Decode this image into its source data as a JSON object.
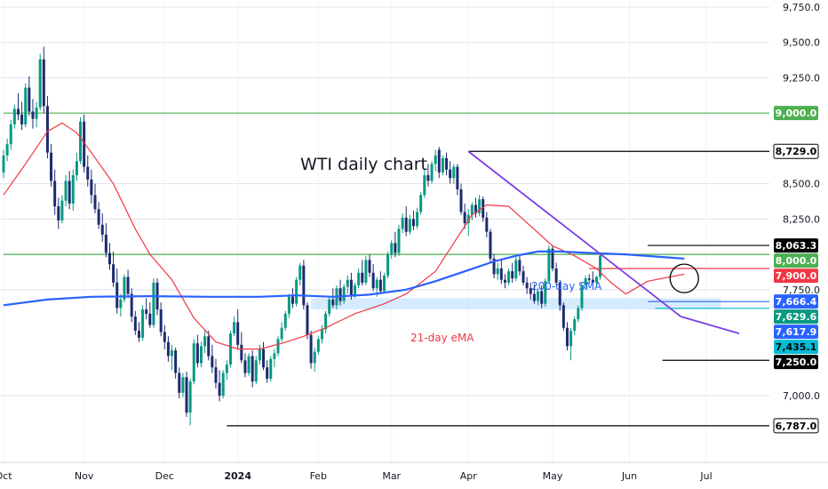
{
  "chart_data": {
    "type": "candlestick",
    "title": "WTI daily chart",
    "colors": {
      "up": "#089981",
      "down": "#1e2a6e",
      "sma200": "#2962ff",
      "ema21": "#f23645",
      "support_green": "#4caf50",
      "trendline": "#7b3fe4",
      "zone": "#bbdefb",
      "grid": "#e0e3eb"
    },
    "y_axis": {
      "ticks": [
        "9,750.0",
        "9,500.0",
        "9,250.0",
        "8,500.0",
        "8,250.0",
        "7,750.0",
        "7,000.0"
      ],
      "tick_values": [
        9750,
        9500,
        9250,
        8500,
        8250,
        7750,
        7000
      ],
      "ylim": [
        6570,
        9830
      ]
    },
    "x_axis": {
      "ticks": [
        "Oct",
        "Nov",
        "Dec",
        "2024",
        "Feb",
        "Mar",
        "Apr",
        "May",
        "Jun",
        "Jul"
      ],
      "tick_index": [
        0,
        22,
        44,
        64,
        86,
        106,
        127,
        150,
        171,
        192
      ]
    },
    "price_levels": [
      {
        "label": "9,000.0",
        "value": 9000,
        "bg": "#4caf50",
        "fg": "#ffffff"
      },
      {
        "label": "8,729.0",
        "value": 8729,
        "bg": "#ffffff",
        "fg": "#000000"
      },
      {
        "label": "8,063.3",
        "value": 8063,
        "bg": "#000000",
        "fg": "#ffffff"
      },
      {
        "label": "8,000.0",
        "value": 8000,
        "bg": "#4caf50",
        "fg": "#ffffff"
      },
      {
        "label": "7,900.0",
        "value": 7900,
        "bg": "#f23645",
        "fg": "#ffffff"
      },
      {
        "label": "7,666.4",
        "value": 7666,
        "bg": "#2962ff",
        "fg": "#ffffff"
      },
      {
        "label": "7,629.6",
        "value": 7630,
        "bg": "#089981",
        "fg": "#ffffff"
      },
      {
        "label": "7,617.9",
        "value": 7618,
        "bg": "#2962ff",
        "fg": "#ffffff"
      },
      {
        "label": "7,435.1",
        "value": 7435,
        "bg": "#00bcd4",
        "fg": "#000000"
      },
      {
        "label": "7,250.0",
        "value": 7250,
        "bg": "#000000",
        "fg": "#ffffff"
      },
      {
        "label": "6,787.0",
        "value": 6787,
        "bg": "#ffffff",
        "fg": "#000000"
      }
    ],
    "annotations": [
      {
        "text": "200-day SMA",
        "color": "#2962ff"
      },
      {
        "text": "21-day eMA",
        "color": "#f23645"
      }
    ],
    "candles": [
      [
        8580,
        8740,
        8540,
        8700
      ],
      [
        8700,
        8820,
        8660,
        8780
      ],
      [
        8780,
        8950,
        8740,
        8920
      ],
      [
        8920,
        9060,
        8890,
        9030
      ],
      [
        9030,
        9140,
        8950,
        8990
      ],
      [
        8990,
        9080,
        8880,
        8920
      ],
      [
        8920,
        9210,
        8900,
        9180
      ],
      [
        9180,
        9260,
        8980,
        9010
      ],
      [
        9010,
        9100,
        8890,
        8960
      ],
      [
        8960,
        9080,
        8900,
        9040
      ],
      [
        9040,
        9420,
        9020,
        9380
      ],
      [
        9380,
        9470,
        9000,
        9050
      ],
      [
        9050,
        9120,
        8680,
        8720
      ],
      [
        8720,
        8780,
        8480,
        8520
      ],
      [
        8520,
        8600,
        8280,
        8340
      ],
      [
        8340,
        8400,
        8180,
        8240
      ],
      [
        8240,
        8420,
        8220,
        8380
      ],
      [
        8380,
        8560,
        8340,
        8520
      ],
      [
        8520,
        8590,
        8320,
        8360
      ],
      [
        8360,
        8600,
        8310,
        8560
      ],
      [
        8560,
        8720,
        8520,
        8660
      ],
      [
        8660,
        8970,
        8640,
        8940
      ],
      [
        8940,
        8990,
        8580,
        8620
      ],
      [
        8620,
        8700,
        8480,
        8530
      ],
      [
        8530,
        8600,
        8360,
        8420
      ],
      [
        8420,
        8500,
        8290,
        8320
      ],
      [
        8320,
        8370,
        8180,
        8210
      ],
      [
        8210,
        8290,
        8090,
        8140
      ],
      [
        8140,
        8220,
        7980,
        8010
      ],
      [
        8010,
        8080,
        7890,
        7930
      ],
      [
        7930,
        8020,
        7770,
        7800
      ],
      [
        7800,
        7900,
        7580,
        7620
      ],
      [
        7620,
        7720,
        7560,
        7680
      ],
      [
        7680,
        7860,
        7660,
        7840
      ],
      [
        7840,
        7890,
        7690,
        7720
      ],
      [
        7720,
        7760,
        7520,
        7560
      ],
      [
        7560,
        7600,
        7430,
        7460
      ],
      [
        7460,
        7520,
        7380,
        7410
      ],
      [
        7410,
        7640,
        7390,
        7610
      ],
      [
        7610,
        7690,
        7540,
        7580
      ],
      [
        7580,
        7660,
        7480,
        7500
      ],
      [
        7500,
        7830,
        7480,
        7800
      ],
      [
        7800,
        7830,
        7570,
        7610
      ],
      [
        7610,
        7660,
        7420,
        7450
      ],
      [
        7450,
        7500,
        7330,
        7380
      ],
      [
        7380,
        7420,
        7240,
        7280
      ],
      [
        7280,
        7360,
        7180,
        7320
      ],
      [
        7320,
        7340,
        7120,
        7160
      ],
      [
        7160,
        7200,
        6980,
        7020
      ],
      [
        7020,
        7160,
        6990,
        7130
      ],
      [
        7130,
        7170,
        6850,
        6880
      ],
      [
        6880,
        7120,
        6790,
        7100
      ],
      [
        7100,
        7400,
        7080,
        7370
      ],
      [
        7370,
        7430,
        7200,
        7230
      ],
      [
        7230,
        7380,
        7200,
        7350
      ],
      [
        7350,
        7460,
        7300,
        7420
      ],
      [
        7420,
        7460,
        7250,
        7280
      ],
      [
        7280,
        7360,
        7160,
        7200
      ],
      [
        7200,
        7260,
        7050,
        7090
      ],
      [
        7090,
        7180,
        6960,
        7000
      ],
      [
        7000,
        7180,
        6980,
        7160
      ],
      [
        7160,
        7250,
        7110,
        7220
      ],
      [
        7220,
        7460,
        7200,
        7440
      ],
      [
        7440,
        7560,
        7420,
        7520
      ],
      [
        7520,
        7610,
        7330,
        7360
      ],
      [
        7360,
        7450,
        7230,
        7250
      ],
      [
        7250,
        7300,
        7130,
        7160
      ],
      [
        7160,
        7300,
        7140,
        7280
      ],
      [
        7280,
        7320,
        7060,
        7100
      ],
      [
        7100,
        7280,
        7080,
        7250
      ],
      [
        7250,
        7360,
        7220,
        7330
      ],
      [
        7330,
        7380,
        7180,
        7200
      ],
      [
        7200,
        7250,
        7090,
        7120
      ],
      [
        7120,
        7280,
        7100,
        7260
      ],
      [
        7260,
        7330,
        7200,
        7300
      ],
      [
        7300,
        7420,
        7280,
        7400
      ],
      [
        7400,
        7520,
        7380,
        7480
      ],
      [
        7480,
        7600,
        7460,
        7580
      ],
      [
        7580,
        7720,
        7550,
        7700
      ],
      [
        7700,
        7760,
        7620,
        7650
      ],
      [
        7650,
        7840,
        7630,
        7820
      ],
      [
        7820,
        7940,
        7780,
        7920
      ],
      [
        7920,
        7960,
        7610,
        7640
      ],
      [
        7640,
        7660,
        7400,
        7430
      ],
      [
        7430,
        7460,
        7190,
        7230
      ],
      [
        7230,
        7340,
        7170,
        7310
      ],
      [
        7310,
        7420,
        7290,
        7400
      ],
      [
        7400,
        7500,
        7370,
        7470
      ],
      [
        7470,
        7600,
        7440,
        7580
      ],
      [
        7580,
        7700,
        7560,
        7680
      ],
      [
        7680,
        7760,
        7620,
        7640
      ],
      [
        7640,
        7780,
        7610,
        7760
      ],
      [
        7760,
        7820,
        7640,
        7670
      ],
      [
        7670,
        7790,
        7650,
        7770
      ],
      [
        7770,
        7850,
        7720,
        7820
      ],
      [
        7820,
        7870,
        7680,
        7710
      ],
      [
        7710,
        7800,
        7690,
        7780
      ],
      [
        7780,
        7900,
        7760,
        7870
      ],
      [
        7870,
        7960,
        7780,
        7800
      ],
      [
        7800,
        7990,
        7780,
        7960
      ],
      [
        7960,
        8000,
        7840,
        7870
      ],
      [
        7870,
        7930,
        7740,
        7760
      ],
      [
        7760,
        7840,
        7700,
        7820
      ],
      [
        7820,
        7880,
        7720,
        7740
      ],
      [
        7740,
        7870,
        7730,
        7850
      ],
      [
        7850,
        8020,
        7830,
        8000
      ],
      [
        8000,
        8100,
        7970,
        8080
      ],
      [
        8080,
        8160,
        7980,
        8010
      ],
      [
        8010,
        8210,
        7990,
        8180
      ],
      [
        8180,
        8290,
        8150,
        8260
      ],
      [
        8260,
        8340,
        8130,
        8160
      ],
      [
        8160,
        8280,
        8140,
        8250
      ],
      [
        8250,
        8310,
        8170,
        8200
      ],
      [
        8200,
        8330,
        8180,
        8300
      ],
      [
        8300,
        8440,
        8280,
        8420
      ],
      [
        8420,
        8600,
        8400,
        8560
      ],
      [
        8560,
        8640,
        8480,
        8520
      ],
      [
        8520,
        8660,
        8500,
        8640
      ],
      [
        8640,
        8740,
        8590,
        8700
      ],
      [
        8740,
        8760,
        8540,
        8580
      ],
      [
        8580,
        8700,
        8560,
        8680
      ],
      [
        8680,
        8720,
        8560,
        8600
      ],
      [
        8600,
        8660,
        8500,
        8540
      ],
      [
        8540,
        8640,
        8500,
        8620
      ],
      [
        8620,
        8640,
        8420,
        8460
      ],
      [
        8460,
        8500,
        8280,
        8300
      ],
      [
        8300,
        8360,
        8180,
        8220
      ],
      [
        8220,
        8320,
        8130,
        8280
      ],
      [
        8280,
        8370,
        8240,
        8350
      ],
      [
        8350,
        8400,
        8260,
        8290
      ],
      [
        8290,
        8420,
        8270,
        8390
      ],
      [
        8390,
        8410,
        8230,
        8260
      ],
      [
        8260,
        8300,
        8120,
        8160
      ],
      [
        8160,
        8180,
        7940,
        7970
      ],
      [
        7970,
        8000,
        7830,
        7860
      ],
      [
        7860,
        7940,
        7820,
        7900
      ],
      [
        7900,
        7960,
        7790,
        7820
      ],
      [
        7820,
        7860,
        7760,
        7800
      ],
      [
        7800,
        7900,
        7780,
        7880
      ],
      [
        7880,
        7940,
        7800,
        7830
      ],
      [
        7830,
        7990,
        7810,
        7960
      ],
      [
        7960,
        8000,
        7850,
        7880
      ],
      [
        7880,
        7920,
        7780,
        7800
      ],
      [
        7800,
        7840,
        7720,
        7760
      ],
      [
        7760,
        7800,
        7680,
        7720
      ],
      [
        7720,
        7790,
        7650,
        7670
      ],
      [
        7670,
        7760,
        7640,
        7740
      ],
      [
        7740,
        7780,
        7620,
        7650
      ],
      [
        7650,
        7830,
        7630,
        7810
      ],
      [
        7810,
        8063,
        7790,
        8040
      ],
      [
        8040,
        8060,
        7880,
        7900
      ],
      [
        7900,
        7940,
        7780,
        7800
      ],
      [
        7800,
        7820,
        7600,
        7640
      ],
      [
        7640,
        7660,
        7460,
        7480
      ],
      [
        7480,
        7520,
        7320,
        7350
      ],
      [
        7350,
        7480,
        7250,
        7460
      ],
      [
        7460,
        7560,
        7430,
        7540
      ],
      [
        7540,
        7640,
        7520,
        7620
      ],
      [
        7620,
        7800,
        7600,
        7780
      ],
      [
        7780,
        7850,
        7750,
        7830
      ],
      [
        7830,
        7860,
        7790,
        7820
      ],
      [
        7820,
        7880,
        7780,
        7800
      ],
      [
        7800,
        7850,
        7770,
        7840
      ],
      [
        7840,
        8010,
        7820,
        7990
      ]
    ],
    "sma200": [
      [
        0,
        7640
      ],
      [
        12,
        7680
      ],
      [
        24,
        7700
      ],
      [
        40,
        7704
      ],
      [
        56,
        7700
      ],
      [
        70,
        7700
      ],
      [
        80,
        7710
      ],
      [
        90,
        7700
      ],
      [
        100,
        7715
      ],
      [
        110,
        7750
      ],
      [
        118,
        7810
      ],
      [
        126,
        7880
      ],
      [
        134,
        7950
      ],
      [
        140,
        7990
      ],
      [
        146,
        8020
      ],
      [
        152,
        8020
      ],
      [
        160,
        8010
      ],
      [
        170,
        8000
      ],
      [
        186,
        7970
      ]
    ],
    "ema21": [
      [
        0,
        8420
      ],
      [
        6,
        8640
      ],
      [
        12,
        8870
      ],
      [
        16,
        8930
      ],
      [
        20,
        8860
      ],
      [
        24,
        8720
      ],
      [
        30,
        8500
      ],
      [
        36,
        8180
      ],
      [
        40,
        8000
      ],
      [
        46,
        7820
      ],
      [
        52,
        7550
      ],
      [
        58,
        7380
      ],
      [
        64,
        7330
      ],
      [
        70,
        7330
      ],
      [
        76,
        7370
      ],
      [
        82,
        7420
      ],
      [
        88,
        7480
      ],
      [
        96,
        7580
      ],
      [
        104,
        7650
      ],
      [
        110,
        7720
      ],
      [
        118,
        7880
      ],
      [
        124,
        8120
      ],
      [
        128,
        8280
      ],
      [
        132,
        8350
      ],
      [
        138,
        8340
      ],
      [
        144,
        8200
      ],
      [
        150,
        8060
      ],
      [
        156,
        7990
      ],
      [
        162,
        7900
      ],
      [
        166,
        7800
      ],
      [
        170,
        7720
      ],
      [
        176,
        7810
      ],
      [
        186,
        7860
      ]
    ],
    "trendline": [
      [
        127,
        8729
      ],
      [
        185,
        7560
      ]
    ],
    "zone": [
      [
        84,
        7690
      ],
      [
        196,
        7610
      ]
    ],
    "hlines": [
      {
        "value": 9000,
        "from": 0,
        "to": 196,
        "color": "#4caf50"
      },
      {
        "value": 8000,
        "from": 0,
        "to": 196,
        "color": "#4caf50"
      },
      {
        "value": 8729,
        "from": 127,
        "to": 196,
        "color": "#000000"
      },
      {
        "value": 8063,
        "from": 176,
        "to": 196,
        "color": "#000000"
      },
      {
        "value": 7900,
        "from": 160,
        "to": 196,
        "color": "#f23645"
      },
      {
        "value": 7666,
        "from": 176,
        "to": 196,
        "color": "#2962ff"
      },
      {
        "value": 7618,
        "from": 178,
        "to": 196,
        "color": "#00bcd4"
      },
      {
        "value": 7250,
        "from": 180,
        "to": 196,
        "color": "#000000"
      },
      {
        "value": 6787,
        "from": 61,
        "to": 196,
        "color": "#000000"
      }
    ],
    "circle_center": [
      185,
      7830
    ]
  }
}
